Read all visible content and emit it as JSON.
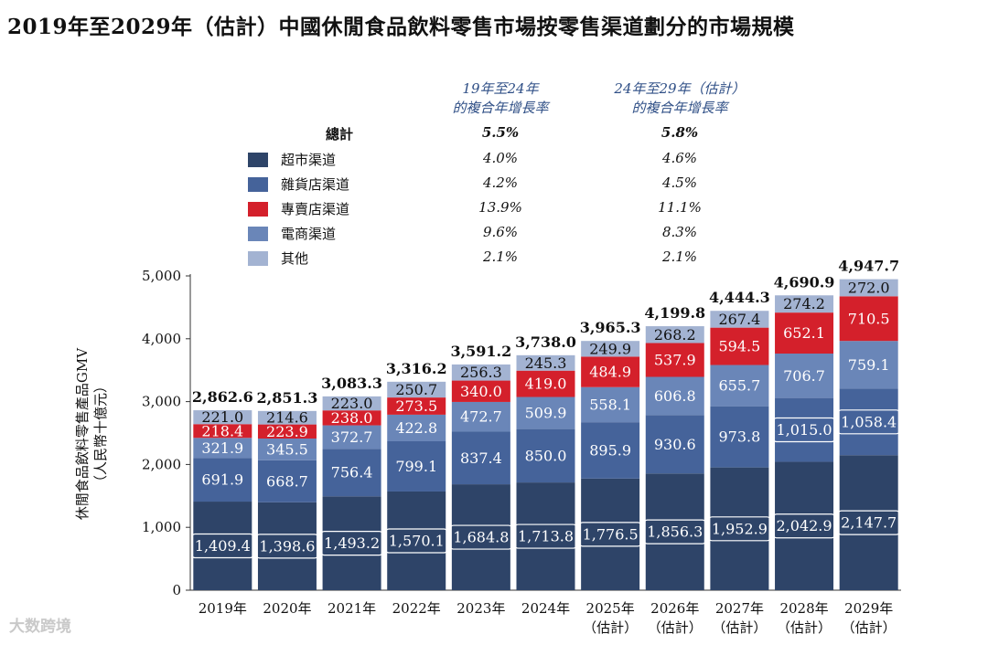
{
  "title": "2019年至2029年（估計）中國休閒食品飲料零售市場按零售渠道劃分的市場規模",
  "cagr_headers": [
    "19年至24年\n的複合年增長率",
    "24年至29年（估計）\n的複合年增長率"
  ],
  "legend": {
    "total_label": "總計",
    "total_cagr": [
      "5.5%",
      "5.8%"
    ],
    "items": [
      {
        "name": "超市渠道",
        "color": "#2e4468",
        "cagr": [
          "4.0%",
          "4.6%"
        ]
      },
      {
        "name": "雜貨店渠道",
        "color": "#45639a",
        "cagr": [
          "4.2%",
          "4.5%"
        ]
      },
      {
        "name": "專賣店渠道",
        "color": "#d4202b",
        "cagr": [
          "13.9%",
          "11.1%"
        ]
      },
      {
        "name": "電商渠道",
        "color": "#6a86b8",
        "cagr": [
          "9.6%",
          "8.3%"
        ]
      },
      {
        "name": "其他",
        "color": "#a3b3d2",
        "cagr": [
          "2.1%",
          "2.1%"
        ]
      }
    ]
  },
  "y_axis_title": "休閒食品飲料零售產品GMV\n（人民幣十億元）",
  "watermark": "大数跨境",
  "chart_data": {
    "type": "bar",
    "stacked": true,
    "categories": [
      "2019年",
      "2020年",
      "2021年",
      "2022年",
      "2023年",
      "2024年",
      "2025年\n(估計)",
      "2026年\n(估計)",
      "2027年\n(估計)",
      "2028年\n(估計)",
      "2029年\n(估計)"
    ],
    "series": [
      {
        "name": "超市渠道",
        "color": "#2e4468",
        "values": [
          1409.4,
          1398.6,
          1493.2,
          1570.1,
          1684.8,
          1713.8,
          1776.5,
          1856.3,
          1952.9,
          2042.9,
          2147.7
        ],
        "labels": [
          "1,409.4",
          "1,398.6",
          "1,493.2",
          "1,570.1",
          "1,684.8",
          "1,713.8",
          "1,776.5",
          "1,856.3",
          "1,952.9",
          "2,042.9",
          "2,147.7"
        ]
      },
      {
        "name": "雜貨店渠道",
        "color": "#45639a",
        "values": [
          691.9,
          668.7,
          756.4,
          799.1,
          837.4,
          850.0,
          895.9,
          930.6,
          973.8,
          1015.0,
          1058.4
        ],
        "labels": [
          "691.9",
          "668.7",
          "756.4",
          "799.1",
          "837.4",
          "850.0",
          "895.9",
          "930.6",
          "973.8",
          "1,015.0",
          "1,058.4"
        ]
      },
      {
        "name": "電商渠道",
        "color": "#6a86b8",
        "values": [
          321.9,
          345.5,
          372.7,
          422.8,
          472.7,
          509.9,
          558.1,
          606.8,
          655.7,
          706.7,
          759.1
        ],
        "labels": [
          "321.9",
          "345.5",
          "372.7",
          "422.8",
          "472.7",
          "509.9",
          "558.1",
          "606.8",
          "655.7",
          "706.7",
          "759.1"
        ]
      },
      {
        "name": "專賣店渠道",
        "color": "#d4202b",
        "values": [
          218.4,
          223.9,
          238.0,
          273.5,
          340.0,
          419.0,
          484.9,
          537.9,
          594.5,
          652.1,
          710.5
        ],
        "labels": [
          "218.4",
          "223.9",
          "238.0",
          "273.5",
          "340.0",
          "419.0",
          "484.9",
          "537.9",
          "594.5",
          "652.1",
          "710.5"
        ]
      },
      {
        "name": "其他",
        "color": "#a3b3d2",
        "values": [
          221.0,
          214.6,
          223.0,
          250.7,
          256.3,
          245.3,
          249.9,
          268.2,
          267.4,
          274.2,
          272.0
        ],
        "labels": [
          "221.0",
          "214.6",
          "223.0",
          "250.7",
          "256.3",
          "245.3",
          "249.9",
          "268.2",
          "267.4",
          "274.2",
          "272.0"
        ]
      }
    ],
    "totals": [
      "2,862.6",
      "2,851.3",
      "3,083.3",
      "3,316.2",
      "3,591.2",
      "3,738.0",
      "3,965.3",
      "4,199.8",
      "4,444.3",
      "4,690.9",
      "4,947.7"
    ],
    "totals_values": [
      2862.6,
      2851.3,
      3083.3,
      3316.2,
      3591.2,
      3738.0,
      3965.3,
      4199.8,
      4444.3,
      4690.9,
      4947.7
    ],
    "yticks": [
      "0",
      "1,000",
      "2,000",
      "3,000",
      "4,000",
      "5,000"
    ],
    "ylim": [
      0,
      5000
    ],
    "legend_position": "top"
  }
}
